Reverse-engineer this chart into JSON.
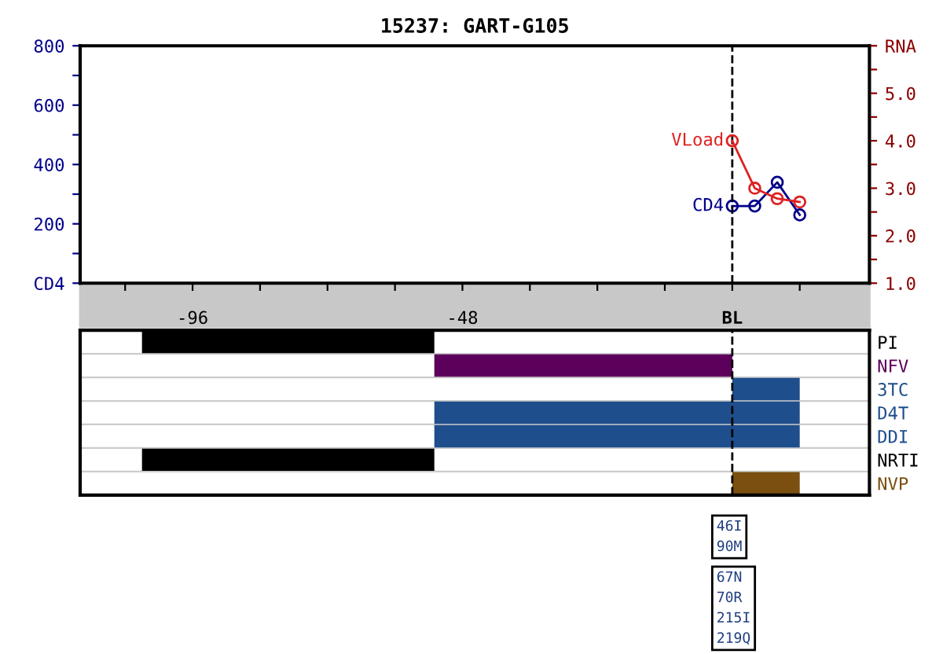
{
  "chart_data": [
    {
      "type": "line",
      "title": "15237: GART-G105",
      "series": [
        {
          "name": "CD4",
          "color": "#00008b",
          "x": [
            0,
            4,
            8,
            12
          ],
          "values": [
            260,
            260,
            340,
            230
          ]
        },
        {
          "name": "VLoad",
          "color": "#dd2222",
          "axis": "y2",
          "x": [
            0,
            4,
            8,
            12
          ],
          "values": [
            4.0,
            3.0,
            2.78,
            2.71
          ]
        }
      ],
      "xlim": [
        -116,
        24.4
      ],
      "xticks": [
        {
          "value": -108,
          "label": null
        },
        -96,
        {
          "value": -84,
          "label": null
        },
        {
          "value": -72,
          "label": null
        },
        {
          "value": -60,
          "label": null
        },
        -48,
        {
          "value": -36,
          "label": null
        },
        {
          "value": -24,
          "label": null
        },
        {
          "value": -12,
          "label": null
        },
        {
          "value": 0,
          "label": "BL"
        },
        {
          "value": 12,
          "label": null
        }
      ],
      "ylim": [
        0,
        800
      ],
      "yticks": [
        {
          "value": 0,
          "label": "CD4"
        },
        {
          "value": 100,
          "label": null
        },
        200,
        {
          "value": 300,
          "label": null
        },
        400,
        {
          "value": 500,
          "label": null
        },
        600,
        {
          "value": 700,
          "label": null
        },
        800
      ],
      "y2lim": [
        1.0,
        6.0
      ],
      "y2ticks": [
        {
          "value": 1.0,
          "label": "1.0"
        },
        {
          "value": 1.5,
          "label": null
        },
        {
          "value": 2.0,
          "label": "2.0"
        },
        {
          "value": 2.5,
          "label": null
        },
        {
          "value": 3.0,
          "label": "3.0"
        },
        {
          "value": 3.5,
          "label": null
        },
        {
          "value": 4.0,
          "label": "4.0"
        },
        {
          "value": 4.5,
          "label": null
        },
        {
          "value": 5.0,
          "label": "5.0"
        },
        {
          "value": 5.5,
          "label": null
        },
        {
          "value": 6.0,
          "label": "RNA"
        }
      ],
      "marker": "circle",
      "grid": false,
      "legend": false,
      "ref_lines": [
        {
          "axis": "x",
          "value": 0,
          "color": "#000000",
          "line_style": "dashed"
        }
      ]
    },
    {
      "type": "bar",
      "orientation": "horizontal",
      "categories": [
        "PI",
        "NFV",
        "3TC",
        "D4T",
        "DDI",
        "NRTI",
        "NVP"
      ],
      "values": [
        52,
        53,
        12,
        65,
        65,
        52,
        12
      ],
      "base": [
        -105,
        -53,
        0,
        -53,
        -53,
        -105,
        0
      ],
      "colors": [
        "#000000",
        "#5c005c",
        "#1f4e8c",
        "#1f4e8c",
        "#1f4e8c",
        "#000000",
        "#7a4f10"
      ],
      "xlim": [
        -116,
        24.4
      ],
      "tick_labels": "y",
      "grid": "y",
      "ref_lines": [
        {
          "axis": "x",
          "value": 0,
          "color": "#000000",
          "line_style": "dashed"
        }
      ],
      "annotations": [
        "46I\n90M",
        "67N\n70R\n215I\n219Q"
      ]
    }
  ]
}
